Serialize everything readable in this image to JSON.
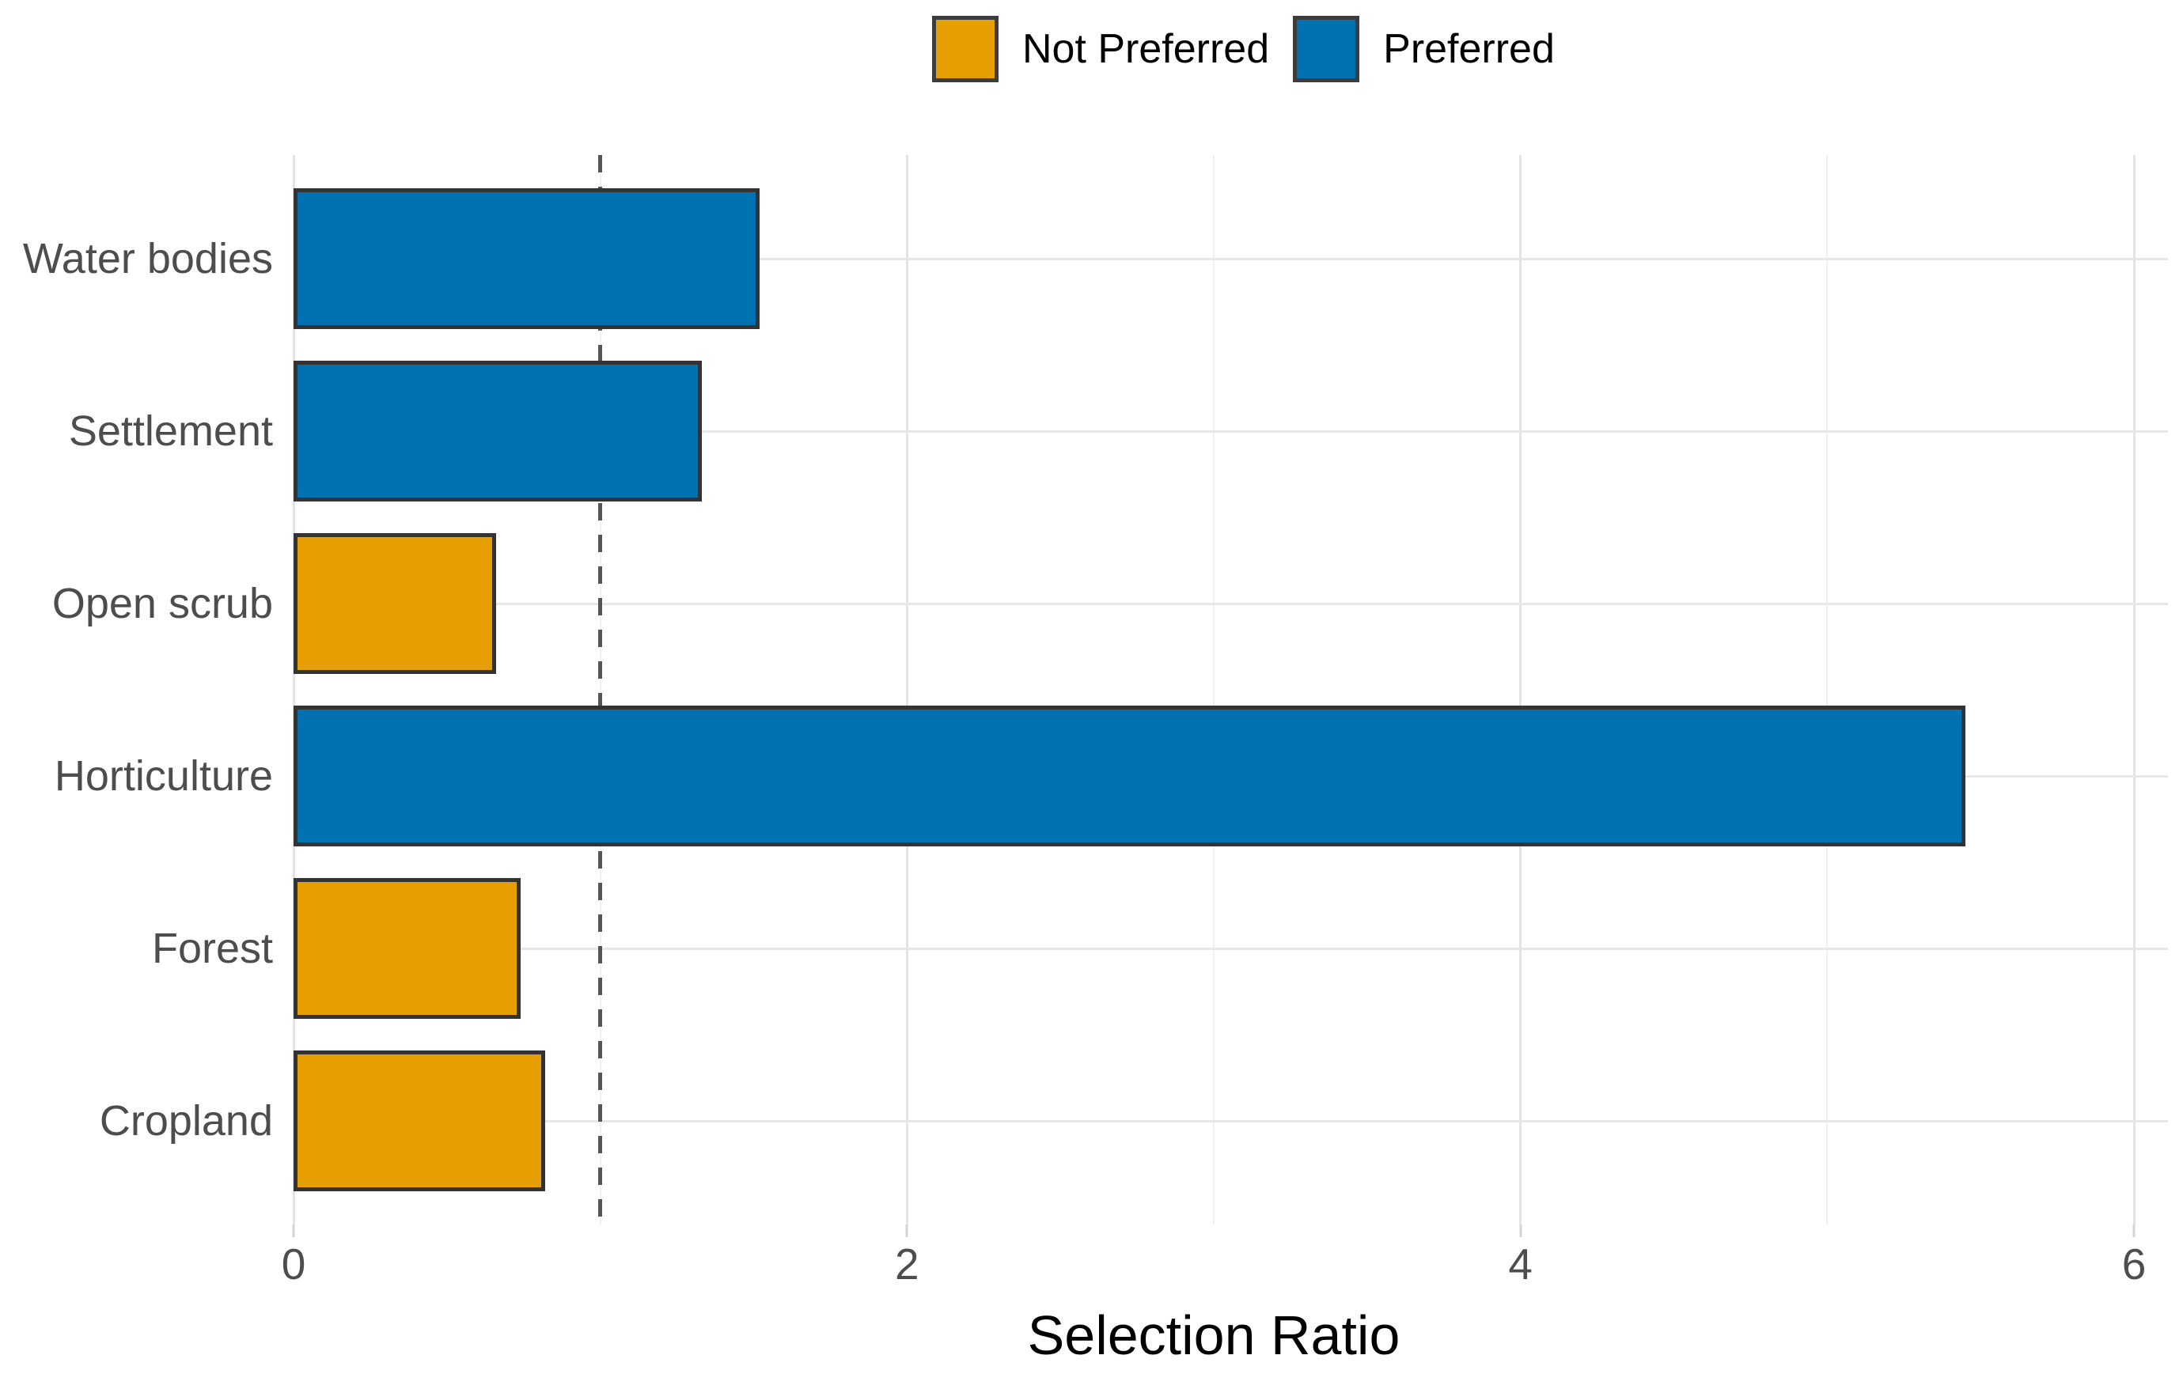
{
  "chart_data": {
    "type": "bar",
    "orientation": "horizontal",
    "title": "",
    "xlabel": "Selection Ratio",
    "ylabel": "",
    "categories": [
      "Water bodies",
      "Settlement",
      "Open scrub",
      "Horticulture",
      "Forest",
      "Cropland"
    ],
    "series": [
      {
        "name": "Selection Ratio",
        "values": [
          1.52,
          1.33,
          0.66,
          5.45,
          0.74,
          0.82
        ],
        "groups": [
          "Preferred",
          "Preferred",
          "Not Preferred",
          "Preferred",
          "Not Preferred",
          "Not Preferred"
        ]
      }
    ],
    "x_ticks": [
      0,
      2,
      4,
      6
    ],
    "x_minor_ticks": [
      1,
      3,
      5
    ],
    "xlim": [
      0,
      6.11
    ],
    "reference_line_x": 1,
    "legend_position": "top",
    "legend": [
      {
        "label": "Not Preferred",
        "group": "Not Preferred",
        "color": "#E69F00"
      },
      {
        "label": "Preferred",
        "group": "Preferred",
        "color": "#0072B2"
      }
    ],
    "colors": {
      "not_preferred_fill": "#E69F00",
      "preferred_fill": "#0072B2",
      "bar_border": "#333333",
      "major_gridline": "#E4E4E4",
      "minor_gridline": "#F0F0F0",
      "reference_line": "#555555",
      "axis_text": "#4D4D4D",
      "label_text": "#000000"
    },
    "grid": true
  }
}
